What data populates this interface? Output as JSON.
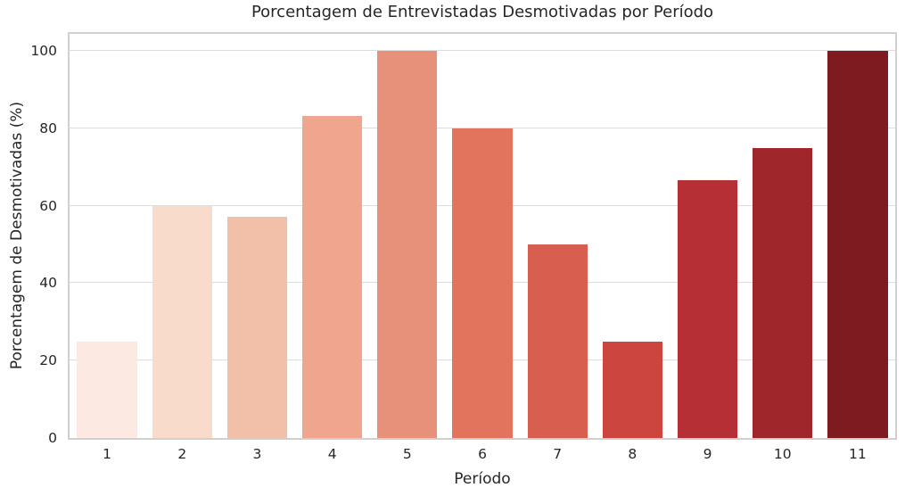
{
  "chart_data": {
    "type": "bar",
    "title": "Porcentagem de Entrevistadas Desmotivadas por Período",
    "xlabel": "Período",
    "ylabel": "Porcentagem de Desmotivadas (%)",
    "categories": [
      "1",
      "2",
      "3",
      "4",
      "5",
      "6",
      "7",
      "8",
      "9",
      "10",
      "11"
    ],
    "values": [
      25,
      60,
      57.1,
      83.3,
      100,
      80,
      50,
      25,
      66.7,
      75,
      100
    ],
    "bar_colors": [
      "#fce9e1",
      "#f9dbcb",
      "#f2c0a8",
      "#efa58e",
      "#e8917a",
      "#e2745e",
      "#d85e50",
      "#cc453e",
      "#b52f35",
      "#9f272c",
      "#7d1b21"
    ],
    "yticks": [
      0,
      20,
      40,
      60,
      80,
      100
    ],
    "ylim": [
      0,
      104.4
    ],
    "grid": "horizontal",
    "legend": "none",
    "bar_width_ratio": 0.8,
    "colors": {
      "background": "#ffffff",
      "gridline": "#dcdcdc",
      "spine": "#d0d0d0",
      "text": "#262626"
    }
  }
}
